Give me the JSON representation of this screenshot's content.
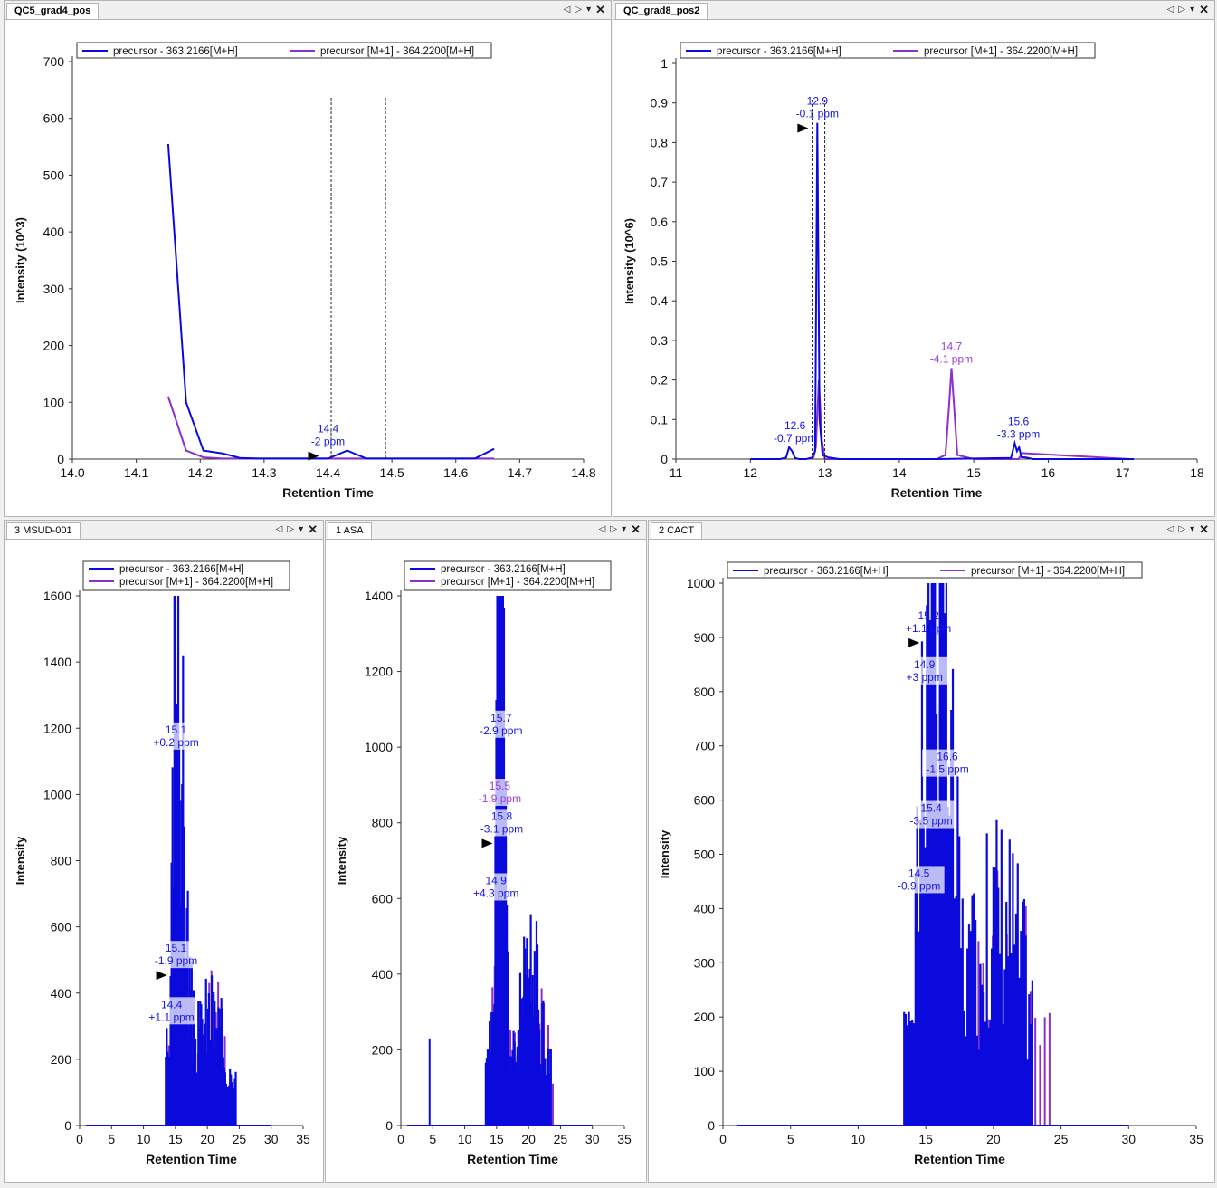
{
  "window": {
    "tab_controls": {
      "left": "◁",
      "right": "▷",
      "menu": "▾",
      "close": "✕"
    }
  },
  "panes": [
    {
      "id": "p1",
      "tab": "QC5_grad4_pos",
      "active": true
    },
    {
      "id": "p2",
      "tab": "QC_grad8_pos2",
      "active": true
    },
    {
      "id": "p3",
      "tab": "3 MSUD-001",
      "active": false
    },
    {
      "id": "p4",
      "tab": "1 ASA",
      "active": false
    },
    {
      "id": "p5",
      "tab": "2 CACT",
      "active": false
    }
  ],
  "colors": {
    "series_main": "#0a0adc",
    "series_m1": "#8c2fd0",
    "annotation_main": "#1414e6",
    "annotation_m1": "#9a3ed8"
  },
  "chart_data": [
    {
      "type": "line",
      "pane": "QC5_grad4_pos",
      "xlabel": "Retention Time",
      "ylabel": "Intensity (10^3)",
      "xlim": [
        14.0,
        14.8
      ],
      "ylim": [
        0,
        700
      ],
      "xticks": [
        "14.0",
        "14.1",
        "14.2",
        "14.3",
        "14.4",
        "14.5",
        "14.6",
        "14.7",
        "14.8"
      ],
      "yticks": [
        "0",
        "100",
        "200",
        "300",
        "400",
        "500",
        "600",
        "700"
      ],
      "legend": {
        "layout": "row",
        "entries": [
          "precursor - 363.2166[M+H]",
          "precursor [M+1] - 364.2200[M+H]"
        ]
      },
      "series": [
        {
          "name": "precursor - 363.2166[M+H]",
          "color": "#0a0adc",
          "x": [
            14.15,
            14.178,
            14.205,
            14.235,
            14.262,
            14.29,
            14.35,
            14.4,
            14.43,
            14.46,
            14.5,
            14.6,
            14.63,
            14.66
          ],
          "y": [
            555,
            100,
            15,
            10,
            2,
            1,
            1,
            1,
            15,
            1,
            1,
            1,
            1,
            18
          ]
        },
        {
          "name": "precursor [M+1] - 364.2200[M+H]",
          "color": "#8c2fd0",
          "x": [
            14.15,
            14.178,
            14.205,
            14.235,
            14.26,
            14.3,
            14.4,
            14.5,
            14.6,
            14.66
          ],
          "y": [
            110,
            15,
            3,
            1,
            1,
            1,
            1,
            1,
            1,
            1
          ]
        }
      ],
      "annotations": [
        {
          "x": 14.4,
          "y": 15,
          "l1": "14.4",
          "l2": "-2 ppm",
          "color": "main",
          "arrow": true
        }
      ],
      "markers": [
        14.405,
        14.49
      ]
    },
    {
      "type": "line",
      "pane": "QC_grad8_pos2",
      "xlabel": "Retention Time",
      "ylabel": "Intensity (10^6)",
      "xlim": [
        11,
        18
      ],
      "ylim": [
        0,
        1
      ],
      "xticks": [
        "11",
        "12",
        "13",
        "14",
        "15",
        "16",
        "17",
        "18"
      ],
      "yticks": [
        "0",
        "0.1",
        "0.2",
        "0.3",
        "0.4",
        "0.5",
        "0.6",
        "0.7",
        "0.8",
        "0.9",
        "1"
      ],
      "legend": {
        "layout": "row",
        "entries": [
          "precursor - 363.2166[M+H]",
          "precursor [M+1] - 364.2200[M+H]"
        ]
      },
      "series": [
        {
          "name": "precursor - 363.2166[M+H]",
          "color": "#0a0adc",
          "x": [
            12.0,
            12.4,
            12.48,
            12.52,
            12.56,
            12.6,
            12.65,
            12.75,
            12.83,
            12.87,
            12.9,
            12.93,
            12.97,
            13.05,
            13.2,
            14.5,
            15.5,
            15.55,
            15.58,
            15.61,
            15.64,
            15.7,
            15.8,
            17.15
          ],
          "y": [
            0.0,
            0.0,
            0.004,
            0.03,
            0.02,
            0.003,
            0.0,
            0.0,
            0.004,
            0.02,
            0.85,
            0.1,
            0.01,
            0.004,
            0.0,
            0.0,
            0.003,
            0.04,
            0.02,
            0.03,
            0.005,
            0.004,
            0.0,
            0.0
          ]
        },
        {
          "name": "precursor [M+1] - 364.2200[M+H]",
          "color": "#8c2fd0",
          "x": [
            12.8,
            12.85,
            12.88,
            12.92,
            12.96,
            13.0,
            14.5,
            14.62,
            14.67,
            14.7,
            14.73,
            14.78,
            15.0,
            15.6,
            15.65,
            17.1
          ],
          "y": [
            0.0,
            0.005,
            0.03,
            0.2,
            0.05,
            0.0,
            0.0,
            0.01,
            0.14,
            0.23,
            0.15,
            0.01,
            0.0,
            0.0,
            0.015,
            0.0
          ]
        }
      ],
      "annotations": [
        {
          "x": 12.9,
          "y": 0.85,
          "l1": "12.9",
          "l2": "-0.1 ppm",
          "color": "main",
          "arrow": true
        },
        {
          "x": 12.6,
          "y": 0.03,
          "l1": "12.6",
          "l2": "-0.7 ppm",
          "color": "main"
        },
        {
          "x": 14.7,
          "y": 0.23,
          "l1": "14.7",
          "l2": "-4.1 ppm",
          "color": "m1"
        },
        {
          "x": 15.6,
          "y": 0.04,
          "l1": "15.6",
          "l2": "-3.3 ppm",
          "color": "main"
        }
      ],
      "markers": [
        12.83,
        13.0
      ]
    },
    {
      "type": "line",
      "pane": "3 MSUD-001",
      "xlabel": "Retention Time",
      "ylabel": "Intensity",
      "xlim": [
        0,
        35
      ],
      "ylim": [
        0,
        1600
      ],
      "xticks": [
        "0",
        "5",
        "10",
        "15",
        "20",
        "25",
        "30",
        "35"
      ],
      "yticks": [
        "0",
        "200",
        "400",
        "600",
        "800",
        "1000",
        "1200",
        "1400",
        "1600"
      ],
      "legend": {
        "layout": "column",
        "entries": [
          "precursor - 363.2166[M+H]",
          "precursor [M+1] - 364.2200[M+H]"
        ]
      },
      "spikes": {
        "start": 13.5,
        "end": 24.5,
        "step": 0.15,
        "peaks": [
          {
            "c": 15.2,
            "h": 1280,
            "w": 0.8
          },
          {
            "c": 16.2,
            "h": 620,
            "w": 1.2
          },
          {
            "c": 20.5,
            "h": 320,
            "w": 3.5
          }
        ],
        "noise": 0.55,
        "seed": 3
      },
      "spikes_m1": {
        "start": 14.0,
        "end": 23.0,
        "step": 0.35,
        "peaks": [
          {
            "c": 15.0,
            "h": 620,
            "w": 1.0
          },
          {
            "c": 21.5,
            "h": 380,
            "w": 2.5
          }
        ],
        "noise": 0.5,
        "seed": 7
      },
      "series": [
        {
          "name": "precursor - 363.2166[M+H]",
          "color": "#0a0adc",
          "x": [
            1,
            30
          ],
          "y": [
            0,
            0
          ]
        },
        {
          "name": "precursor [M+1] - 364.2200[M+H]",
          "color": "#8c2fd0",
          "x": [
            1,
            30
          ],
          "y": [
            0,
            0
          ]
        }
      ],
      "annotations": [
        {
          "x": 15.1,
          "y": 1130,
          "l1": "15.1",
          "l2": "+0.2 ppm",
          "color": "main",
          "box": true
        },
        {
          "x": 15.1,
          "y": 470,
          "l1": "15.1",
          "l2": "-1.9 ppm",
          "color": "main",
          "box": true,
          "arrow": true
        },
        {
          "x": 14.4,
          "y": 300,
          "l1": "14.4",
          "l2": "+1.1 ppm",
          "color": "main",
          "box": true
        }
      ],
      "markers": []
    },
    {
      "type": "line",
      "pane": "1 ASA",
      "xlabel": "Retention Time",
      "ylabel": "Intensity",
      "xlim": [
        0,
        35
      ],
      "ylim": [
        0,
        1400
      ],
      "xticks": [
        "0",
        "5",
        "10",
        "15",
        "20",
        "25",
        "30",
        "35"
      ],
      "yticks": [
        "0",
        "200",
        "400",
        "600",
        "800",
        "1000",
        "1200",
        "1400"
      ],
      "legend": {
        "layout": "column",
        "entries": [
          "precursor - 363.2166[M+H]",
          "precursor [M+1] - 364.2200[M+H]"
        ]
      },
      "spikes": {
        "start": 13.3,
        "end": 23.5,
        "step": 0.15,
        "peaks": [
          {
            "c": 15.7,
            "h": 1145,
            "w": 0.7
          },
          {
            "c": 15.3,
            "h": 700,
            "w": 1.2
          },
          {
            "c": 20.5,
            "h": 380,
            "w": 3.0
          }
        ],
        "noise": 0.55,
        "seed": 11
      },
      "spikes_m1": {
        "start": 14.0,
        "end": 24.0,
        "step": 0.35,
        "peaks": [
          {
            "c": 15.3,
            "h": 680,
            "w": 1.0
          },
          {
            "c": 21.0,
            "h": 300,
            "w": 3.0
          }
        ],
        "noise": 0.5,
        "seed": 5
      },
      "extra_spikes": [
        {
          "x": 4.5,
          "y": 230
        }
      ],
      "series": [
        {
          "name": "precursor - 363.2166[M+H]",
          "color": "#0a0adc",
          "x": [
            1,
            30
          ],
          "y": [
            0,
            0
          ]
        },
        {
          "name": "precursor [M+1] - 364.2200[M+H]",
          "color": "#8c2fd0",
          "x": [
            1,
            30
          ],
          "y": [
            0,
            0
          ]
        }
      ],
      "annotations": [
        {
          "x": 15.7,
          "y": 1020,
          "l1": "15.7",
          "l2": "-2.9 ppm",
          "color": "main",
          "box": true
        },
        {
          "x": 15.5,
          "y": 840,
          "l1": "15.5",
          "l2": "-1.9 ppm",
          "color": "m1",
          "box": true
        },
        {
          "x": 15.8,
          "y": 760,
          "l1": "15.8",
          "l2": "-3.1 ppm",
          "color": "main",
          "box": true,
          "arrow": true
        },
        {
          "x": 14.9,
          "y": 590,
          "l1": "14.9",
          "l2": "+4.3 ppm",
          "color": "main",
          "box": true
        }
      ],
      "markers": []
    },
    {
      "type": "line",
      "pane": "2 CACT",
      "xlabel": "Retention Time",
      "ylabel": "Intensity",
      "xlim": [
        0,
        35
      ],
      "ylim": [
        0,
        1000
      ],
      "xticks": [
        "0",
        "5",
        "10",
        "15",
        "20",
        "25",
        "30",
        "35"
      ],
      "yticks": [
        "0",
        "100",
        "200",
        "300",
        "400",
        "500",
        "600",
        "700",
        "800",
        "900",
        "1000"
      ],
      "legend": {
        "layout": "row",
        "entries": [
          "precursor - 363.2166[M+H]",
          "precursor [M+1] - 364.2200[M+H]"
        ]
      },
      "spikes": {
        "start": 13.4,
        "end": 23.0,
        "step": 0.12,
        "peaks": [
          {
            "c": 15.2,
            "h": 900,
            "w": 0.9
          },
          {
            "c": 16.3,
            "h": 650,
            "w": 1.2
          },
          {
            "c": 20.5,
            "h": 400,
            "w": 3.0
          }
        ],
        "noise": 0.55,
        "seed": 17
      },
      "spikes_m1": {
        "start": 14.0,
        "end": 24.2,
        "step": 0.35,
        "peaks": [
          {
            "c": 15.5,
            "h": 420,
            "w": 1.5
          },
          {
            "c": 21.0,
            "h": 330,
            "w": 3.5
          }
        ],
        "noise": 0.5,
        "seed": 9
      },
      "series": [
        {
          "name": "precursor - 363.2166[M+H]",
          "color": "#0a0adc",
          "x": [
            1,
            30
          ],
          "y": [
            0,
            0
          ]
        },
        {
          "name": "precursor [M+1] - 364.2200[M+H]",
          "color": "#8c2fd0",
          "x": [
            1,
            30
          ],
          "y": [
            0,
            0
          ]
        }
      ],
      "annotations": [
        {
          "x": 15.2,
          "y": 900,
          "l1": "15.2",
          "l2": "+1.1 ppm",
          "color": "main",
          "arrow": true
        },
        {
          "x": 14.9,
          "y": 810,
          "l1": "14.9",
          "l2": "+3 ppm",
          "color": "main",
          "box": true
        },
        {
          "x": 16.6,
          "y": 640,
          "l1": "16.6",
          "l2": "-1.5 ppm",
          "color": "main",
          "box": true
        },
        {
          "x": 15.4,
          "y": 545,
          "l1": "15.4",
          "l2": "-3.5 ppm",
          "color": "main",
          "box": true
        },
        {
          "x": 14.5,
          "y": 425,
          "l1": "14.5",
          "l2": "-0.9 ppm",
          "color": "main",
          "box": true
        }
      ],
      "markers": []
    }
  ]
}
